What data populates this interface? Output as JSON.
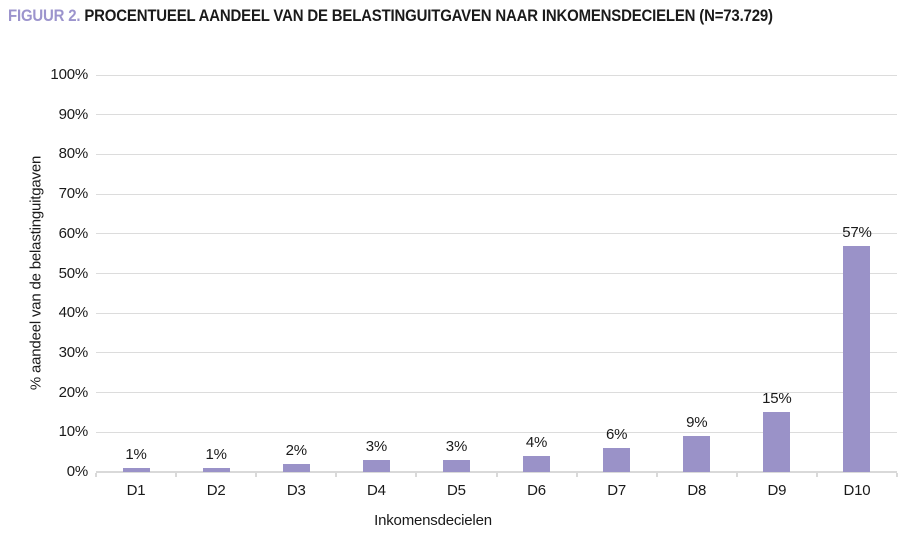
{
  "figure": {
    "label": "FIGUUR 2.",
    "title": "PROCENTUEEL AANDEEL VAN DE BELASTINGUITGAVEN NAAR INKOMENSDECIELEN (N=73.729)"
  },
  "colors": {
    "bar": "#9a92c8",
    "figure_label": "#9c94cd",
    "gridline": "#dcdcdc",
    "axis_line": "#d9d9d9",
    "text": "#1a1a1a"
  },
  "chart_data": {
    "type": "bar",
    "title": "FIGUUR 2. PROCENTUEEL AANDEEL VAN DE BELASTINGUITGAVEN NAAR INKOMENSDECIELEN (N=73.729)",
    "categories": [
      "D1",
      "D2",
      "D3",
      "D4",
      "D5",
      "D6",
      "D7",
      "D8",
      "D9",
      "D10"
    ],
    "values": [
      1,
      1,
      2,
      3,
      3,
      4,
      6,
      9,
      15,
      57
    ],
    "data_labels": [
      "1%",
      "1%",
      "2%",
      "3%",
      "3%",
      "4%",
      "6%",
      "9%",
      "15%",
      "57%"
    ],
    "xlabel": "Inkomensdecielen",
    "ylabel": "% aandeel van de belastinguitgaven",
    "ylim": [
      0,
      100
    ],
    "ytick_step": 10,
    "ytick_labels": [
      "0%",
      "10%",
      "20%",
      "30%",
      "40%",
      "50%",
      "60%",
      "70%",
      "80%",
      "90%",
      "100%"
    ],
    "grid": true,
    "legend": false,
    "bar_color": "#9a92c8"
  }
}
